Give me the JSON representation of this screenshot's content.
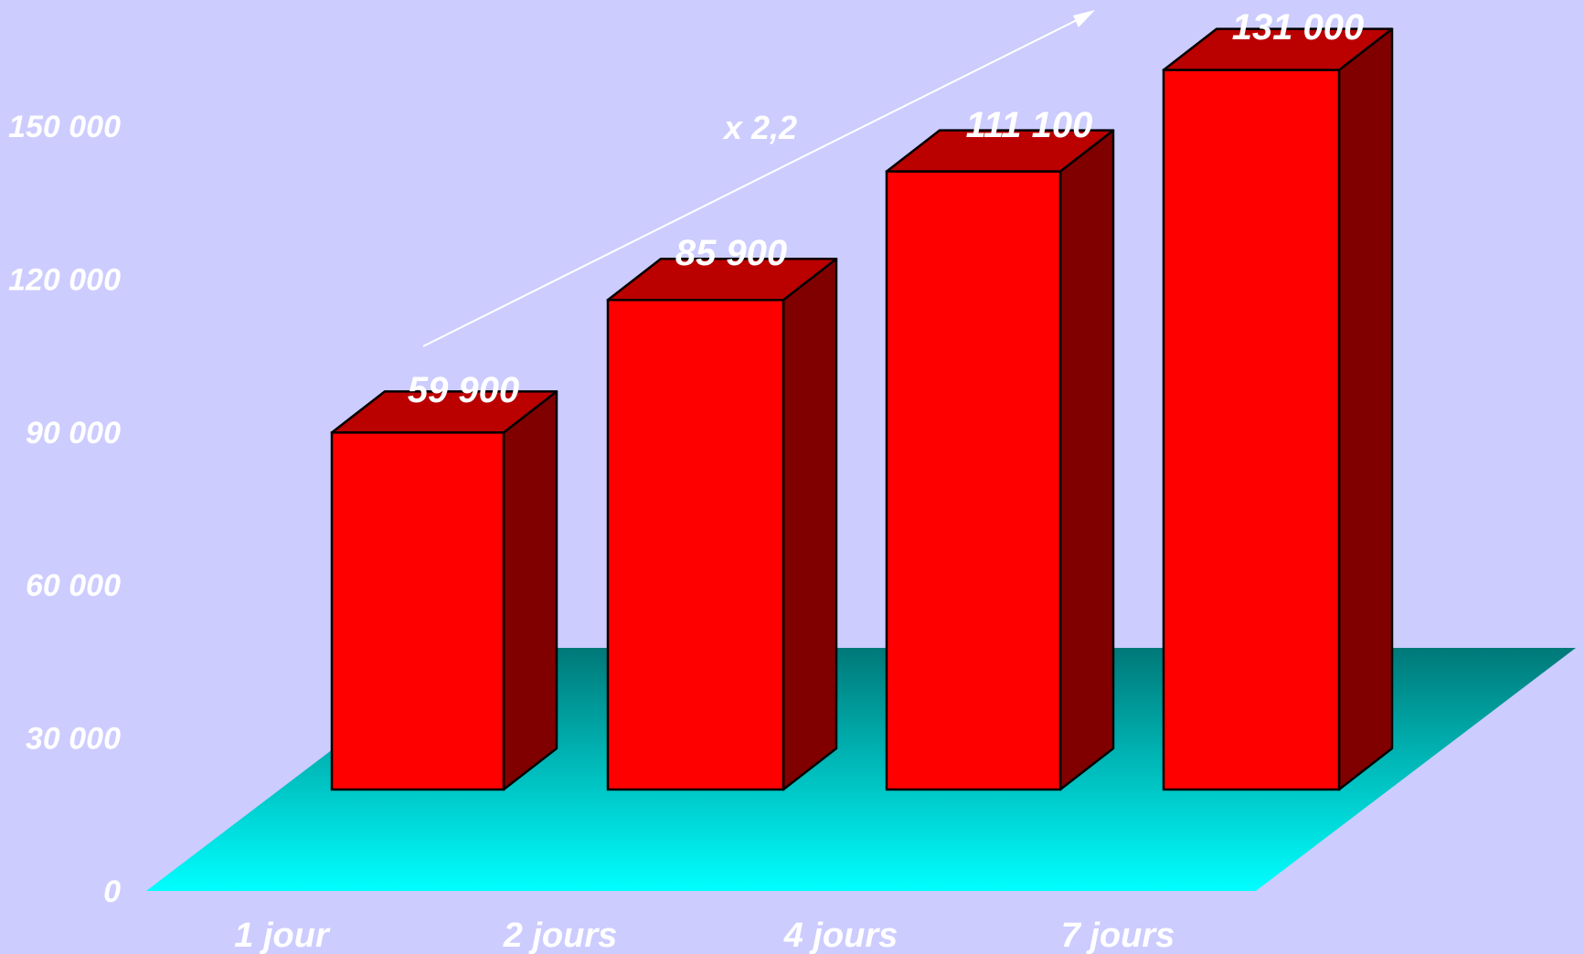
{
  "colors": {
    "background": "#ccccff",
    "floor_back": "#007878",
    "floor_front": "#00ffff",
    "bar_front": "#ff0000",
    "bar_top": "#bb0000",
    "bar_side": "#800000",
    "text": "#ffffff"
  },
  "chart_data": {
    "type": "bar",
    "style": "3d",
    "categories": [
      "1 jour",
      "2 jours",
      "4 jours",
      "7 jours"
    ],
    "values": [
      59900,
      85900,
      111100,
      131000
    ],
    "value_labels": [
      "59 900",
      "85 900",
      "111 100",
      "131 000"
    ],
    "ylim": [
      0,
      150000
    ],
    "yticks": [
      0,
      30000,
      60000,
      90000,
      120000,
      150000
    ],
    "ytick_labels": [
      "0",
      "30 000",
      "60 000",
      "90 000",
      "120 000",
      "150 000"
    ],
    "grid": false,
    "legend": "none",
    "annotation": {
      "text": "x 2,2",
      "type": "arrow",
      "from_category": "1 jour",
      "to_category": "7 jours"
    }
  }
}
